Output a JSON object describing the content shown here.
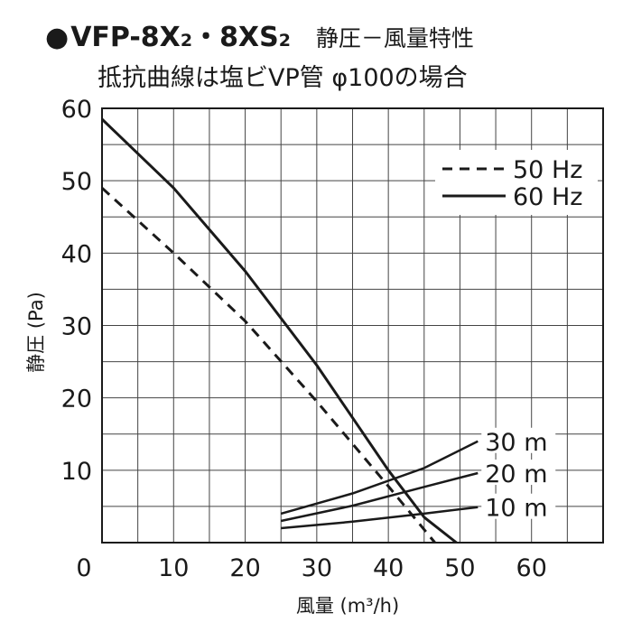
{
  "chart_data": {
    "type": "line",
    "title": {
      "bullet": "●",
      "model_a": "VFP-8X",
      "sub_a": "2",
      "separator": "・",
      "model_b": "8XS",
      "sub_b": "2",
      "description": "静圧－風量特性"
    },
    "subtitle": "抵抗曲線は塩ビVP管 φ100の場合",
    "xlabel": "風量 (m³/h)",
    "ylabel": "静圧 (Pa)",
    "xlim": [
      0,
      70
    ],
    "ylim": [
      0,
      60
    ],
    "x_ticks": [
      0,
      10,
      20,
      30,
      40,
      50,
      60
    ],
    "y_ticks": [
      10,
      20,
      30,
      40,
      50,
      60
    ],
    "x_tick_labels": [
      "0",
      "10",
      "20",
      "30",
      "40",
      "50",
      "60"
    ],
    "y_tick_labels": [
      "10",
      "20",
      "30",
      "40",
      "50",
      "60"
    ],
    "grid": true,
    "grid_x_step": 5,
    "grid_y_step": 5,
    "legend": {
      "placement": "top-right",
      "entries": [
        {
          "label": "50 Hz",
          "style": "dashed"
        },
        {
          "label": "60 Hz",
          "style": "solid"
        }
      ]
    },
    "series": [
      {
        "name": "50 Hz",
        "style": "dashed",
        "color": "#1a1a1a",
        "points": [
          [
            0,
            49
          ],
          [
            10,
            40
          ],
          [
            20,
            30.6
          ],
          [
            30,
            19.5
          ],
          [
            40,
            7.8
          ],
          [
            44,
            3
          ],
          [
            46.5,
            0
          ]
        ]
      },
      {
        "name": "60 Hz",
        "style": "solid",
        "color": "#1a1a1a",
        "points": [
          [
            0,
            58.5
          ],
          [
            10,
            49
          ],
          [
            20,
            37.5
          ],
          [
            30,
            24.5
          ],
          [
            40,
            10
          ],
          [
            45,
            3.5
          ],
          [
            49.5,
            0
          ]
        ]
      }
    ],
    "resistance_curves": [
      {
        "label": "30 m",
        "points": [
          [
            25,
            4
          ],
          [
            35,
            6.8
          ],
          [
            45,
            10.3
          ],
          [
            52.5,
            14
          ]
        ]
      },
      {
        "label": "20 m",
        "points": [
          [
            25,
            3
          ],
          [
            35,
            5.1
          ],
          [
            45,
            7.7
          ],
          [
            52.5,
            9.6
          ]
        ]
      },
      {
        "label": "10 m",
        "points": [
          [
            25,
            2
          ],
          [
            35,
            2.9
          ],
          [
            45,
            4
          ],
          [
            52.5,
            4.9
          ]
        ]
      }
    ]
  }
}
